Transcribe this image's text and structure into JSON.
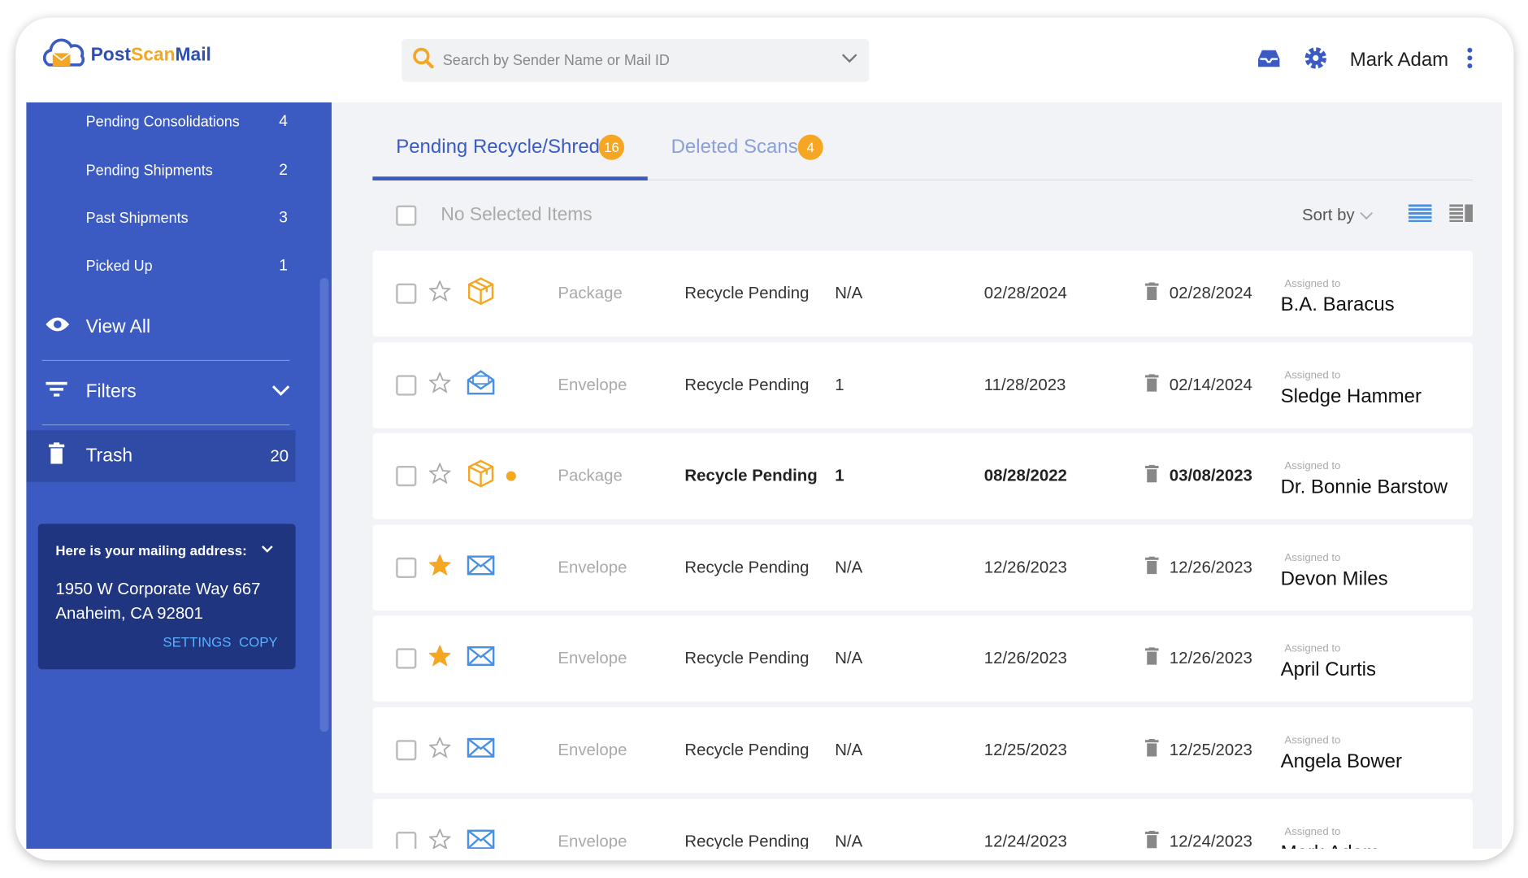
{
  "header": {
    "logo": [
      "Post",
      "Scan",
      "Mail"
    ],
    "search_placeholder": "Search by Sender Name or Mail ID",
    "user": "Mark Adam"
  },
  "sidebar": {
    "items": [
      {
        "label": "Pending Consolidations",
        "count": 4
      },
      {
        "label": "Pending Shipments",
        "count": 2
      },
      {
        "label": "Past Shipments",
        "count": 3
      },
      {
        "label": "Picked Up",
        "count": 1
      }
    ],
    "view_all": "View All",
    "filters": "Filters",
    "trash": {
      "label": "Trash",
      "count": 20
    },
    "address": {
      "title": "Here is your mailing address:",
      "line1": "1950 W Corporate Way 667",
      "line2": "Anaheim, CA 92801",
      "settings": "SETTINGS",
      "copy": "COPY"
    }
  },
  "tabs": [
    {
      "label": "Pending Recycle/Shred",
      "count": 16
    },
    {
      "label": "Deleted Scans",
      "count": 4
    }
  ],
  "toolbar": {
    "selection": "No Selected Items",
    "sort": "Sort by"
  },
  "rows": [
    {
      "type": "Package",
      "status": "Recycle Pending",
      "pages": "N/A",
      "received": "02/28/2024",
      "deleted": "02/28/2024",
      "assigned_label": "Assigned to",
      "assignee": "B.A. Baracus",
      "starred": false,
      "unread": false
    },
    {
      "type": "Envelope",
      "status": "Recycle Pending",
      "pages": "1",
      "received": "11/28/2023",
      "deleted": "02/14/2024",
      "assigned_label": "Assigned to",
      "assignee": "Sledge Hammer",
      "starred": false,
      "unread": false,
      "opened": true
    },
    {
      "type": "Package",
      "status": "Recycle Pending",
      "pages": "1",
      "received": "08/28/2022",
      "deleted": "03/08/2023",
      "assigned_label": "Assigned to",
      "assignee": "Dr. Bonnie Barstow",
      "starred": false,
      "unread": true
    },
    {
      "type": "Envelope",
      "status": "Recycle Pending",
      "pages": "N/A",
      "received": "12/26/2023",
      "deleted": "12/26/2023",
      "assigned_label": "Assigned to",
      "assignee": "Devon Miles",
      "starred": true,
      "unread": false
    },
    {
      "type": "Envelope",
      "status": "Recycle Pending",
      "pages": "N/A",
      "received": "12/26/2023",
      "deleted": "12/26/2023",
      "assigned_label": "Assigned to",
      "assignee": "April Curtis",
      "starred": true,
      "unread": false
    },
    {
      "type": "Envelope",
      "status": "Recycle Pending",
      "pages": "N/A",
      "received": "12/25/2023",
      "deleted": "12/25/2023",
      "assigned_label": "Assigned to",
      "assignee": "Angela Bower",
      "starred": false,
      "unread": false
    },
    {
      "type": "Envelope",
      "status": "Recycle Pending",
      "pages": "N/A",
      "received": "12/24/2023",
      "deleted": "12/24/2023",
      "assigned_label": "Assigned to",
      "assignee": "Mark Adam",
      "starred": false,
      "unread": false
    }
  ]
}
